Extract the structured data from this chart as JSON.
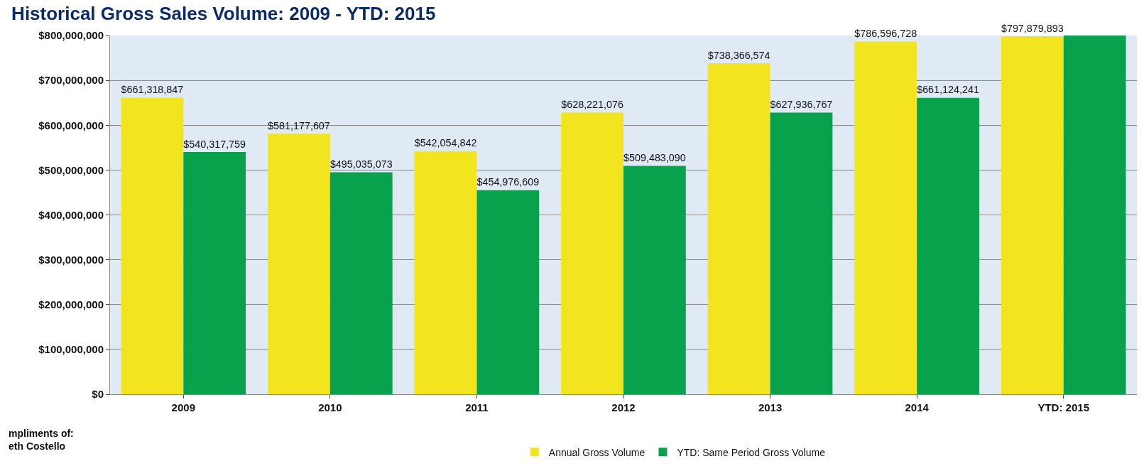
{
  "chart_data": {
    "type": "bar",
    "title": "Historical Gross Sales Volume: 2009 - YTD: 2015",
    "categories": [
      "2009",
      "2010",
      "2011",
      "2012",
      "2013",
      "2014",
      "YTD: 2015"
    ],
    "series": [
      {
        "name": "Annual Gross Volume",
        "color": "#f2e51e",
        "values": [
          661318847,
          581177607,
          542054842,
          628221076,
          738366574,
          786596728,
          797879893
        ],
        "value_labels": [
          "$661,318,847",
          "$581,177,607",
          "$542,054,842",
          "$628,221,076",
          "$738,366,574",
          "$786,596,728",
          "$797,879,893"
        ]
      },
      {
        "name": "YTD: Same Period Gross Volume",
        "color": "#08a24c",
        "values": [
          540317759,
          495035073,
          454976609,
          509483090,
          627936767,
          661124241,
          800000000
        ],
        "value_labels": [
          "$540,317,759",
          "$495,035,073",
          "$454,976,609",
          "$509,483,090",
          "$627,936,767",
          "$661,124,241",
          null
        ]
      }
    ],
    "ylim": [
      0,
      800000000
    ],
    "yticks": [
      {
        "value": 0,
        "label": "$0"
      },
      {
        "value": 100000000,
        "label": "$100,000,000"
      },
      {
        "value": 200000000,
        "label": "$200,000,000"
      },
      {
        "value": 300000000,
        "label": "$300,000,000"
      },
      {
        "value": 400000000,
        "label": "$400,000,000"
      },
      {
        "value": 500000000,
        "label": "$500,000,000"
      },
      {
        "value": 600000000,
        "label": "$600,000,000"
      },
      {
        "value": 700000000,
        "label": "$700,000,000"
      },
      {
        "value": 800000000,
        "label": "$800,000,000"
      }
    ],
    "grid": "y",
    "legend": "bottom",
    "annotations": [
      "mpliments of:\neth Costello"
    ]
  }
}
